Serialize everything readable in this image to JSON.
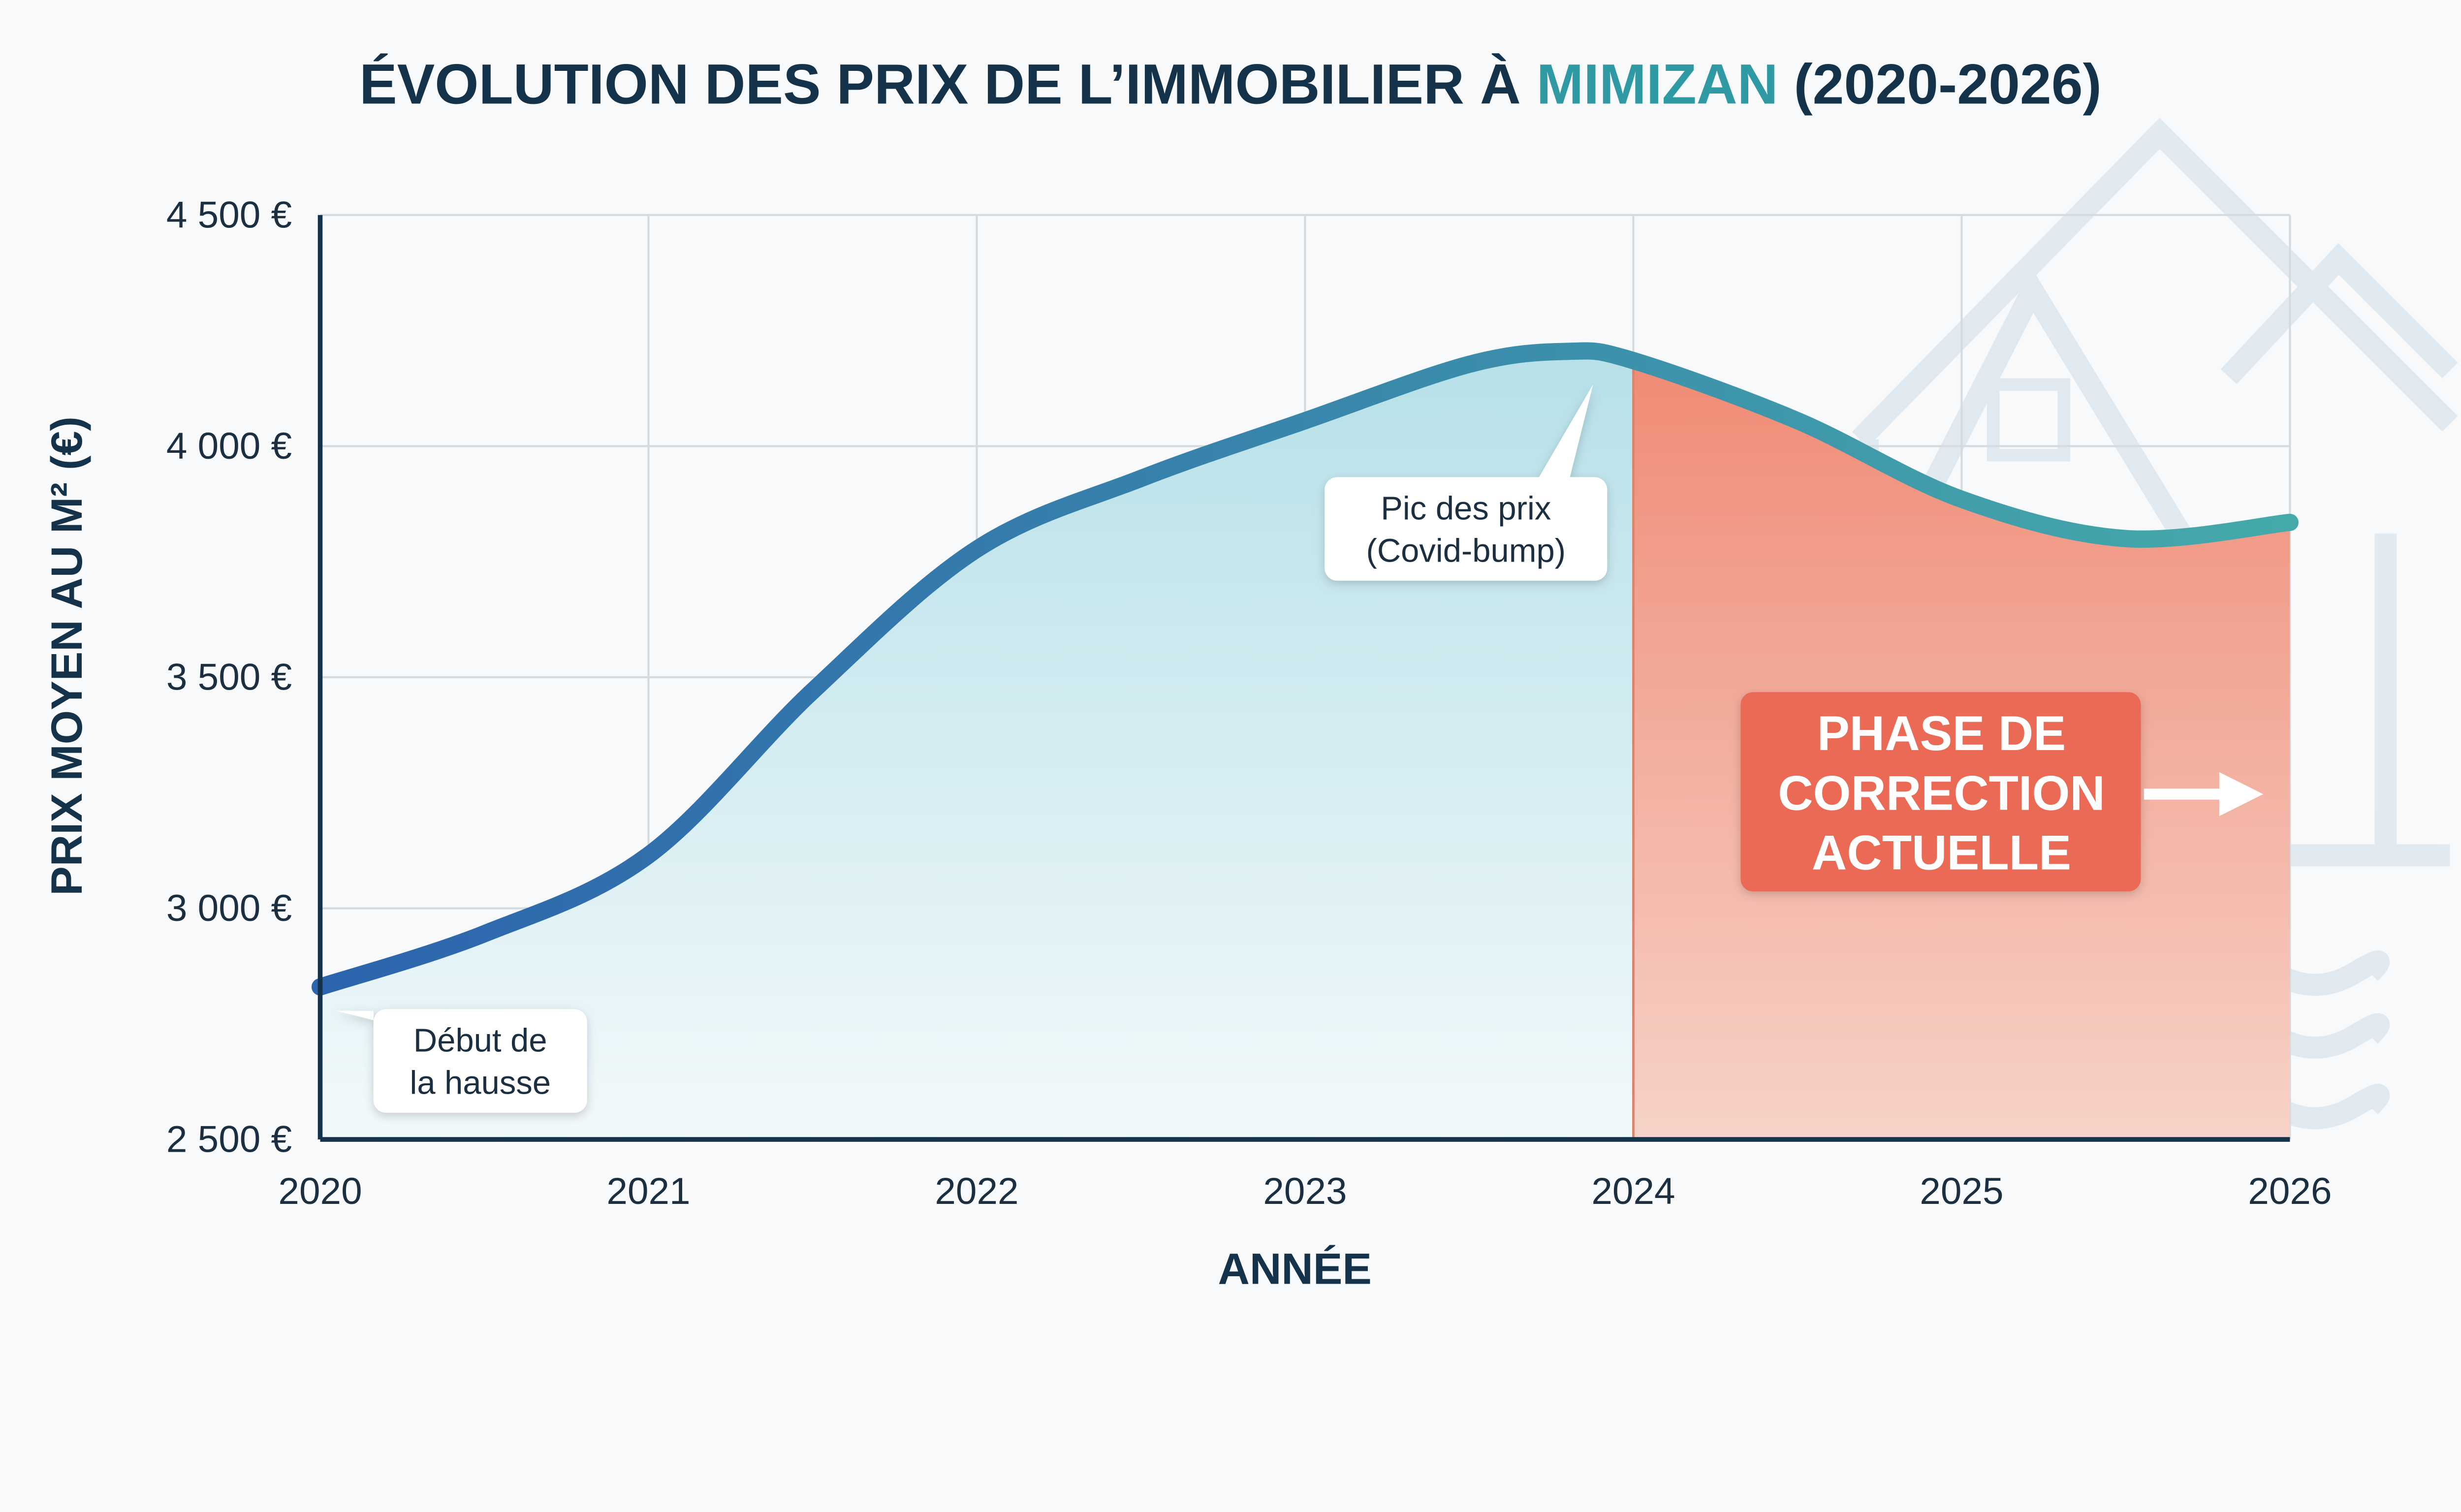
{
  "colors": {
    "title": "#14324a",
    "title_accent": "#2f9aa3",
    "line_start": "#2c64ad",
    "line_end": "#45a9aa",
    "fill_rise": "#bfe3ea",
    "fill_correction": "#ee8a76",
    "phase_box": "#ea6b55"
  },
  "title": {
    "prefix": "ÉVOLUTION DES PRIX DE L’IMMOBILIER À ",
    "accent": "MIMIZAN",
    "suffix": " (2020-2026)"
  },
  "chart_data": {
    "type": "area",
    "title": "ÉVOLUTION DES PRIX DE L’IMMOBILIER À MIMIZAN (2020-2026)",
    "xlabel": "ANNÉE",
    "ylabel": "PRIX MOYEN AU M² (€)",
    "xlim": [
      2020,
      2026
    ],
    "ylim": [
      2500,
      4500
    ],
    "grid": true,
    "x_ticks": [
      "2020",
      "2021",
      "2022",
      "2023",
      "2024",
      "2025",
      "2026"
    ],
    "y_ticks": [
      {
        "value": 2500,
        "label": "2 500 €"
      },
      {
        "value": 3000,
        "label": "3 000 €"
      },
      {
        "value": 3500,
        "label": "3 500 €"
      },
      {
        "value": 4000,
        "label": "4 000 €"
      },
      {
        "value": 4500,
        "label": "4 500 €"
      }
    ],
    "x": [
      2020,
      2020.5,
      2021,
      2021.5,
      2022,
      2022.5,
      2023,
      2023.5,
      2023.8,
      2024,
      2024.5,
      2025,
      2025.5,
      2026
    ],
    "y": [
      2830,
      2945,
      3115,
      3470,
      3777,
      3930,
      4055,
      4177,
      4205,
      4185,
      4055,
      3885,
      3800,
      3835
    ],
    "shaded_region": {
      "from": 2024,
      "to": 2026
    },
    "annotations": [
      {
        "id": "start",
        "lines": [
          "Début de",
          "la hausse"
        ],
        "x": 2020
      },
      {
        "id": "peak",
        "lines": [
          "Pic des prix",
          "(Covid-bump)"
        ],
        "x": 2023.95
      },
      {
        "id": "phase",
        "lines": [
          "PHASE DE",
          "CORRECTION",
          "ACTUELLE"
        ],
        "arrow": "right-arrow-icon"
      }
    ]
  }
}
